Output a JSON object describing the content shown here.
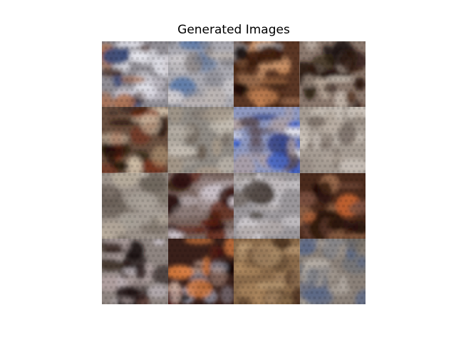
{
  "figure": {
    "title": "Generated Images"
  },
  "grid": {
    "rows": 4,
    "cols": 4
  },
  "tiles": [
    {
      "id": 1,
      "base": "#8f8c93",
      "accents": [
        "#3a4a78",
        "#e6e6ee",
        "#3a1a10",
        "#b06a44",
        "#d8d4de"
      ]
    },
    {
      "id": 2,
      "base": "#a9a8b0",
      "accents": [
        "#5a78a8",
        "#d7d3d5",
        "#7f7a7a",
        "#c0b8b4",
        "#8a8a92"
      ]
    },
    {
      "id": 3,
      "base": "#5a3624",
      "accents": [
        "#0c0505",
        "#c08050",
        "#a0a6b0",
        "#3a1a0c",
        "#d09a70"
      ]
    },
    {
      "id": 4,
      "base": "#8a776c",
      "accents": [
        "#1a0c08",
        "#c9beb4",
        "#5a3a2a",
        "#b8a89a",
        "#2a140c"
      ]
    },
    {
      "id": 5,
      "base": "#6a5040",
      "accents": [
        "#1c0e08",
        "#d6c6b0",
        "#7a2a10",
        "#c0a480",
        "#2c1810"
      ]
    },
    {
      "id": 6,
      "base": "#8f8a84",
      "accents": [
        "#b9b0a6",
        "#6a5c50",
        "#a89a8a",
        "#7a7068",
        "#c8c0b6"
      ]
    },
    {
      "id": 7,
      "base": "#8e98c0",
      "accents": [
        "#3058c8",
        "#e8e8f0",
        "#5a4a50",
        "#b0a0a0",
        "#2a3a80"
      ]
    },
    {
      "id": 8,
      "base": "#a59b92",
      "accents": [
        "#c8c0b8",
        "#7a6e66",
        "#b8aca0",
        "#8c8078",
        "#d0c8c0"
      ]
    },
    {
      "id": 9,
      "base": "#9a9088",
      "accents": [
        "#b8ac9c",
        "#6a6058",
        "#a8a098",
        "#7c7268",
        "#c4bab0"
      ]
    },
    {
      "id": 10,
      "base": "#7a6660",
      "accents": [
        "#1a0806",
        "#d0c8d0",
        "#602010",
        "#a09090",
        "#2c0e08"
      ]
    },
    {
      "id": 11,
      "base": "#9a969a",
      "accents": [
        "#c8c4c8",
        "#403630",
        "#b0a8a8",
        "#6a6058",
        "#d8d4d8"
      ]
    },
    {
      "id": 12,
      "base": "#4a2a1c",
      "accents": [
        "#100604",
        "#c06030",
        "#7a5040",
        "#2a140a",
        "#a07050"
      ]
    },
    {
      "id": 13,
      "base": "#8e8480",
      "accents": [
        "#1a0c0c",
        "#c8c0c8",
        "#5a3c34",
        "#b0a0a0",
        "#2a1812"
      ]
    },
    {
      "id": 14,
      "base": "#3a201a",
      "accents": [
        "#0a0404",
        "#e08040",
        "#a0a0b0",
        "#601c10",
        "#d0b0a0"
      ]
    },
    {
      "id": 15,
      "base": "#8a6a4a",
      "accents": [
        "#b08a60",
        "#4a3020",
        "#c0a078",
        "#6a5038",
        "#a08060"
      ]
    },
    {
      "id": 16,
      "base": "#8a8078",
      "accents": [
        "#5a6888",
        "#a8a098",
        "#706860",
        "#b8b0a8",
        "#606878"
      ]
    }
  ]
}
